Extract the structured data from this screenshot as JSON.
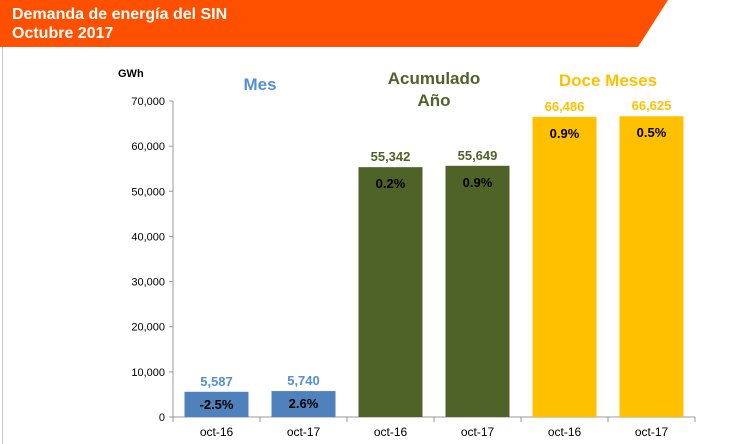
{
  "header": {
    "title_line1": "Demanda de energía del SIN",
    "title_line2": "Octubre 2017",
    "color": "#FF5000"
  },
  "chart_data": {
    "type": "bar",
    "ylabel": "GWh",
    "ylim": [
      0,
      70000
    ],
    "yticks": [
      0,
      10000,
      20000,
      30000,
      40000,
      50000,
      60000,
      70000
    ],
    "ytick_labels": [
      "0",
      "10,000",
      "20,000",
      "30,000",
      "40,000",
      "50,000",
      "60,000",
      "70,000"
    ],
    "grid": false,
    "categories": [
      "oct-16",
      "oct-17",
      "oct-16",
      "oct-17",
      "oct-16",
      "oct-17"
    ],
    "groups": [
      {
        "title": "Mes",
        "color": "#4F81BD",
        "title_color": "#558ED5",
        "values": [
          5587,
          5740
        ],
        "value_labels": [
          "5,587",
          "5,740"
        ],
        "pct_labels": [
          "-2.5%",
          "2.6%"
        ]
      },
      {
        "title": "Acumulado Año",
        "color": "#4F6228",
        "title_color": "#4F6228",
        "values": [
          55342,
          55649
        ],
        "value_labels": [
          "55,342",
          "55,649"
        ],
        "pct_labels": [
          "0.2%",
          "0.9%"
        ]
      },
      {
        "title": "Doce Meses",
        "color": "#FFC000",
        "title_color": "#FFC000",
        "values": [
          66486,
          66625
        ],
        "value_labels": [
          "66,486",
          "66,625"
        ],
        "pct_labels": [
          "0.9%",
          "0.5%"
        ]
      }
    ]
  }
}
